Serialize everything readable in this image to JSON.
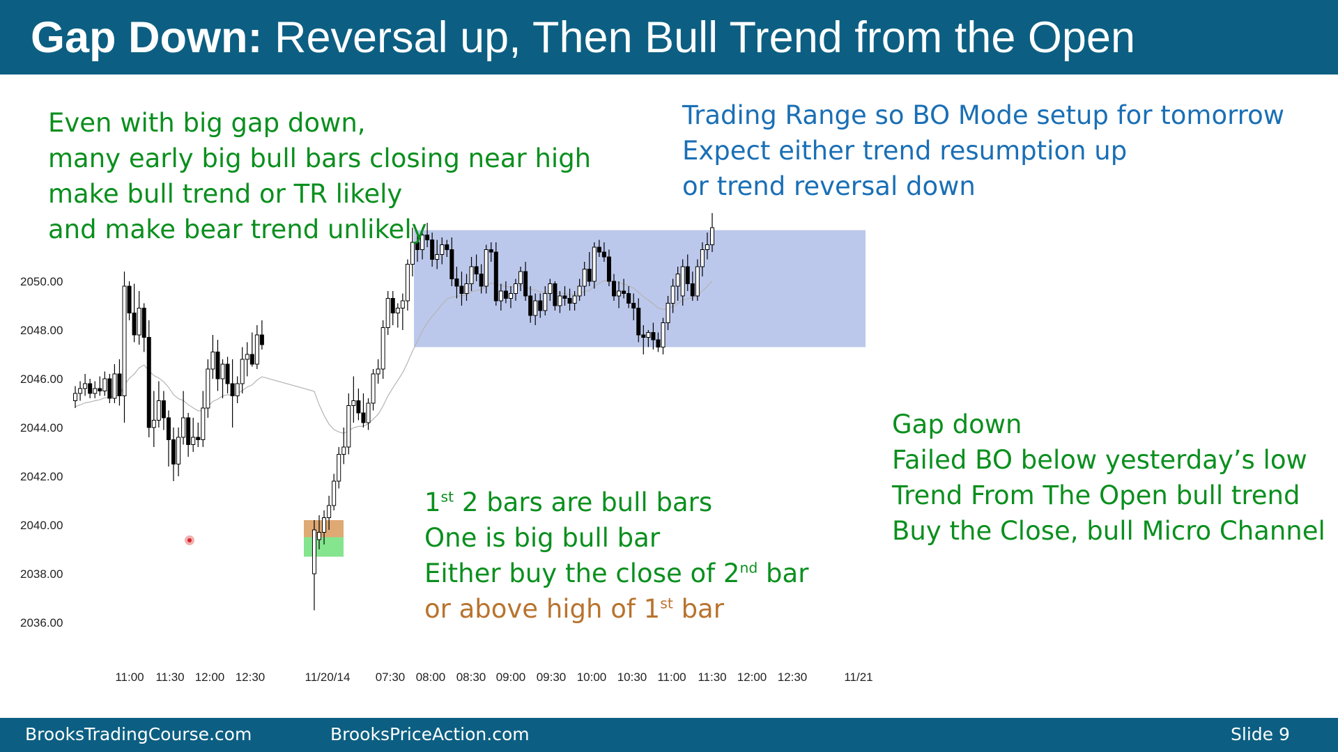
{
  "header": {
    "title_bold": "Gap Down:",
    "title_rest": " Reversal up, Then Bull Trend from the Open"
  },
  "notes": {
    "top_left": [
      "Even with big gap down,",
      "many early big bull bars closing near high",
      "make bull trend or TR likely",
      "and make bear trend unlikely"
    ],
    "top_right": [
      "Trading Range so BO Mode setup for tomorrow",
      "Expect either trend resumption up",
      "or trend reversal down"
    ],
    "bottom_right": [
      "Gap down",
      "Failed BO below yesterday’s low",
      "Trend From The Open bull trend",
      "Buy the Close, bull Micro Channel"
    ],
    "middle": {
      "line1_a": "1",
      "line1_sup": "st",
      "line1_b": " 2 bars are bull bars",
      "line2": "One is big bull bar",
      "line3_a": "Either buy the close of 2",
      "line3_sup": "nd",
      "line3_b": " bar",
      "line4_a": "or above high of 1",
      "line4_sup": "st",
      "line4_b": " bar"
    }
  },
  "chart_data": {
    "type": "candlestick",
    "y_ticks": [
      "2050.00",
      "2048.00",
      "2046.00",
      "2044.00",
      "2042.00",
      "2040.00",
      "2038.00",
      "2036.00"
    ],
    "y_tick_values": [
      2050,
      2048,
      2046,
      2044,
      2042,
      2040,
      2038,
      2036
    ],
    "ylim": [
      2035,
      2052.5
    ],
    "x_ticks": [
      "11:00",
      "11:30",
      "12:00",
      "12:30",
      "11/20/14",
      "07:30",
      "08:00",
      "08:30",
      "09:00",
      "09:30",
      "10:00",
      "10:30",
      "11:00",
      "11:30",
      "12:00",
      "12:30",
      "11/21"
    ],
    "trading_range": {
      "high": 2052.1,
      "low": 2047.3
    },
    "colors": {
      "bull": "#ffffff",
      "bear": "#000000",
      "range_fill": "#a9b8e6",
      "ema": "#b4b4b4",
      "upper_zone": "#d99a5c",
      "lower_zone": "#6ee07a",
      "header": "#0c5f82",
      "green_text": "#0a8f1e",
      "blue_text": "#1a6fb5",
      "brown_text": "#b8732e"
    },
    "bars": [
      [
        2045.1,
        2045.7,
        2044.8,
        2045.4
      ],
      [
        2045.4,
        2045.9,
        2045.1,
        2045.6
      ],
      [
        2045.6,
        2046.2,
        2045.3,
        2045.8
      ],
      [
        2045.8,
        2046.0,
        2045.2,
        2045.4
      ],
      [
        2045.4,
        2045.9,
        2045.2,
        2045.6
      ],
      [
        2045.6,
        2046.1,
        2045.3,
        2045.5
      ],
      [
        2045.5,
        2046.3,
        2045.3,
        2046.0
      ],
      [
        2046.0,
        2046.2,
        2045.0,
        2045.2
      ],
      [
        2045.2,
        2046.6,
        2045.0,
        2046.2
      ],
      [
        2046.2,
        2046.8,
        2044.9,
        2045.3
      ],
      [
        2045.3,
        2050.4,
        2044.2,
        2049.8
      ],
      [
        2049.8,
        2050.0,
        2048.4,
        2048.7
      ],
      [
        2048.7,
        2049.9,
        2047.5,
        2047.8
      ],
      [
        2047.8,
        2049.6,
        2047.4,
        2048.9
      ],
      [
        2048.9,
        2049.1,
        2047.1,
        2047.7
      ],
      [
        2047.7,
        2048.4,
        2043.6,
        2044.0
      ],
      [
        2044.0,
        2045.5,
        2043.2,
        2044.3
      ],
      [
        2044.3,
        2045.9,
        2044.0,
        2045.1
      ],
      [
        2045.1,
        2045.5,
        2043.9,
        2044.4
      ],
      [
        2044.4,
        2044.7,
        2042.4,
        2043.5
      ],
      [
        2043.5,
        2044.0,
        2041.8,
        2042.5
      ],
      [
        2042.5,
        2044.0,
        2042.0,
        2043.6
      ],
      [
        2043.6,
        2045.5,
        2043.3,
        2044.4
      ],
      [
        2044.4,
        2044.6,
        2042.8,
        2043.3
      ],
      [
        2043.3,
        2044.4,
        2043.0,
        2043.6
      ],
      [
        2043.6,
        2044.2,
        2043.2,
        2043.5
      ],
      [
        2043.5,
        2045.5,
        2043.2,
        2044.8
      ],
      [
        2044.8,
        2046.8,
        2044.4,
        2046.4
      ],
      [
        2046.4,
        2047.8,
        2046.0,
        2047.1
      ],
      [
        2047.1,
        2047.6,
        2045.5,
        2046.0
      ],
      [
        2046.0,
        2046.8,
        2045.2,
        2046.6
      ],
      [
        2046.6,
        2046.9,
        2045.4,
        2045.8
      ],
      [
        2045.8,
        2046.8,
        2044.0,
        2045.3
      ],
      [
        2045.3,
        2046.1,
        2045.0,
        2045.8
      ],
      [
        2045.8,
        2047.3,
        2045.4,
        2046.8
      ],
      [
        2046.8,
        2047.5,
        2046.1,
        2047.0
      ],
      [
        2047.0,
        2047.9,
        2046.5,
        2046.6
      ],
      [
        2046.6,
        2048.2,
        2046.4,
        2047.8
      ],
      [
        2047.8,
        2048.4,
        2047.2,
        2047.4
      ],
      [
        2038.0,
        2040.2,
        2036.5,
        2039.8
      ],
      [
        2039.4,
        2040.4,
        2039.0,
        2039.7
      ],
      [
        2039.7,
        2040.6,
        2039.2,
        2040.3
      ],
      [
        2040.3,
        2041.2,
        2039.8,
        2040.8
      ],
      [
        2040.8,
        2042.1,
        2040.6,
        2041.8
      ],
      [
        2041.8,
        2043.2,
        2041.5,
        2042.9
      ],
      [
        2042.9,
        2044.0,
        2042.5,
        2043.2
      ],
      [
        2043.2,
        2045.4,
        2042.9,
        2044.9
      ],
      [
        2044.9,
        2046.1,
        2044.2,
        2045.1
      ],
      [
        2045.1,
        2045.6,
        2044.3,
        2044.6
      ],
      [
        2044.6,
        2045.4,
        2044.0,
        2044.2
      ],
      [
        2044.2,
        2045.2,
        2043.9,
        2045.0
      ],
      [
        2045.0,
        2046.4,
        2044.7,
        2046.2
      ],
      [
        2046.2,
        2046.8,
        2045.8,
        2046.4
      ],
      [
        2046.4,
        2048.4,
        2046.0,
        2048.1
      ],
      [
        2048.1,
        2049.6,
        2047.8,
        2049.3
      ],
      [
        2049.3,
        2049.6,
        2048.2,
        2048.7
      ],
      [
        2048.7,
        2049.1,
        2048.1,
        2048.9
      ],
      [
        2048.9,
        2049.5,
        2048.0,
        2049.2
      ],
      [
        2049.2,
        2050.9,
        2048.8,
        2050.7
      ],
      [
        2050.7,
        2052.2,
        2050.2,
        2051.6
      ],
      [
        2051.6,
        2052.0,
        2050.8,
        2051.3
      ],
      [
        2051.3,
        2052.2,
        2050.9,
        2051.9
      ],
      [
        2051.9,
        2052.4,
        2051.4,
        2051.7
      ],
      [
        2051.7,
        2052.0,
        2050.6,
        2050.9
      ],
      [
        2050.9,
        2051.7,
        2050.5,
        2051.1
      ],
      [
        2051.1,
        2051.8,
        2050.7,
        2051.5
      ],
      [
        2051.5,
        2051.7,
        2051.0,
        2051.3
      ],
      [
        2051.3,
        2051.8,
        2049.8,
        2050.1
      ],
      [
        2050.1,
        2050.6,
        2049.3,
        2049.8
      ],
      [
        2049.8,
        2050.4,
        2049.0,
        2049.5
      ],
      [
        2049.5,
        2050.3,
        2049.2,
        2049.9
      ],
      [
        2049.9,
        2051.0,
        2049.6,
        2050.6
      ],
      [
        2050.6,
        2051.1,
        2050.0,
        2050.3
      ],
      [
        2050.3,
        2050.7,
        2049.5,
        2049.8
      ],
      [
        2049.8,
        2051.5,
        2049.5,
        2051.3
      ],
      [
        2051.3,
        2051.6,
        2050.8,
        2051.2
      ],
      [
        2051.2,
        2051.6,
        2049.0,
        2049.2
      ],
      [
        2049.2,
        2049.9,
        2048.8,
        2049.6
      ],
      [
        2049.6,
        2050.0,
        2049.1,
        2049.3
      ],
      [
        2049.3,
        2049.8,
        2048.9,
        2049.5
      ],
      [
        2049.5,
        2050.1,
        2049.2,
        2049.9
      ],
      [
        2049.9,
        2050.6,
        2049.6,
        2050.4
      ],
      [
        2050.4,
        2050.8,
        2049.2,
        2049.4
      ],
      [
        2049.4,
        2049.8,
        2048.3,
        2048.6
      ],
      [
        2048.6,
        2049.5,
        2048.2,
        2049.2
      ],
      [
        2049.2,
        2049.5,
        2048.5,
        2048.8
      ],
      [
        2048.8,
        2049.8,
        2048.6,
        2049.5
      ],
      [
        2049.5,
        2050.1,
        2049.2,
        2049.9
      ],
      [
        2049.9,
        2050.0,
        2048.8,
        2049.0
      ],
      [
        2049.0,
        2049.6,
        2048.7,
        2049.4
      ],
      [
        2049.4,
        2049.8,
        2049.0,
        2049.3
      ],
      [
        2049.3,
        2049.7,
        2048.8,
        2049.1
      ],
      [
        2049.1,
        2049.6,
        2048.8,
        2049.4
      ],
      [
        2049.4,
        2050.1,
        2049.2,
        2049.8
      ],
      [
        2049.8,
        2050.8,
        2049.4,
        2050.5
      ],
      [
        2050.5,
        2051.2,
        2049.8,
        2050.0
      ],
      [
        2050.0,
        2051.6,
        2049.7,
        2051.4
      ],
      [
        2051.4,
        2051.7,
        2051.0,
        2051.2
      ],
      [
        2051.2,
        2051.6,
        2050.8,
        2051.0
      ],
      [
        2051.0,
        2051.3,
        2049.8,
        2050.0
      ],
      [
        2050.0,
        2050.3,
        2049.2,
        2049.4
      ],
      [
        2049.4,
        2050.0,
        2048.9,
        2049.6
      ],
      [
        2049.6,
        2050.1,
        2049.3,
        2049.5
      ],
      [
        2049.5,
        2049.8,
        2048.9,
        2049.1
      ],
      [
        2049.1,
        2049.5,
        2048.4,
        2048.9
      ],
      [
        2048.9,
        2049.3,
        2047.5,
        2047.8
      ],
      [
        2047.8,
        2048.2,
        2047.0,
        2047.7
      ],
      [
        2047.7,
        2048.0,
        2047.3,
        2047.9
      ],
      [
        2047.9,
        2048.3,
        2047.2,
        2047.6
      ],
      [
        2047.6,
        2047.9,
        2047.1,
        2047.3
      ],
      [
        2047.3,
        2048.5,
        2047.0,
        2048.3
      ],
      [
        2048.3,
        2049.4,
        2048.0,
        2049.1
      ],
      [
        2049.1,
        2050.1,
        2048.7,
        2049.8
      ],
      [
        2049.8,
        2050.6,
        2049.2,
        2050.3
      ],
      [
        2049.4,
        2050.9,
        2049.0,
        2050.6
      ],
      [
        2050.6,
        2051.1,
        2049.6,
        2049.9
      ],
      [
        2049.9,
        2050.4,
        2049.2,
        2049.4
      ],
      [
        2049.4,
        2050.9,
        2049.2,
        2050.6
      ],
      [
        2050.6,
        2051.6,
        2050.2,
        2051.3
      ],
      [
        2051.3,
        2052.0,
        2050.9,
        2051.5
      ],
      [
        2051.5,
        2052.8,
        2051.2,
        2052.2
      ]
    ]
  },
  "footer": {
    "left": "BrooksTradingCourse.com",
    "middle": "BrooksPriceAction.com",
    "slide": "Slide  9"
  }
}
